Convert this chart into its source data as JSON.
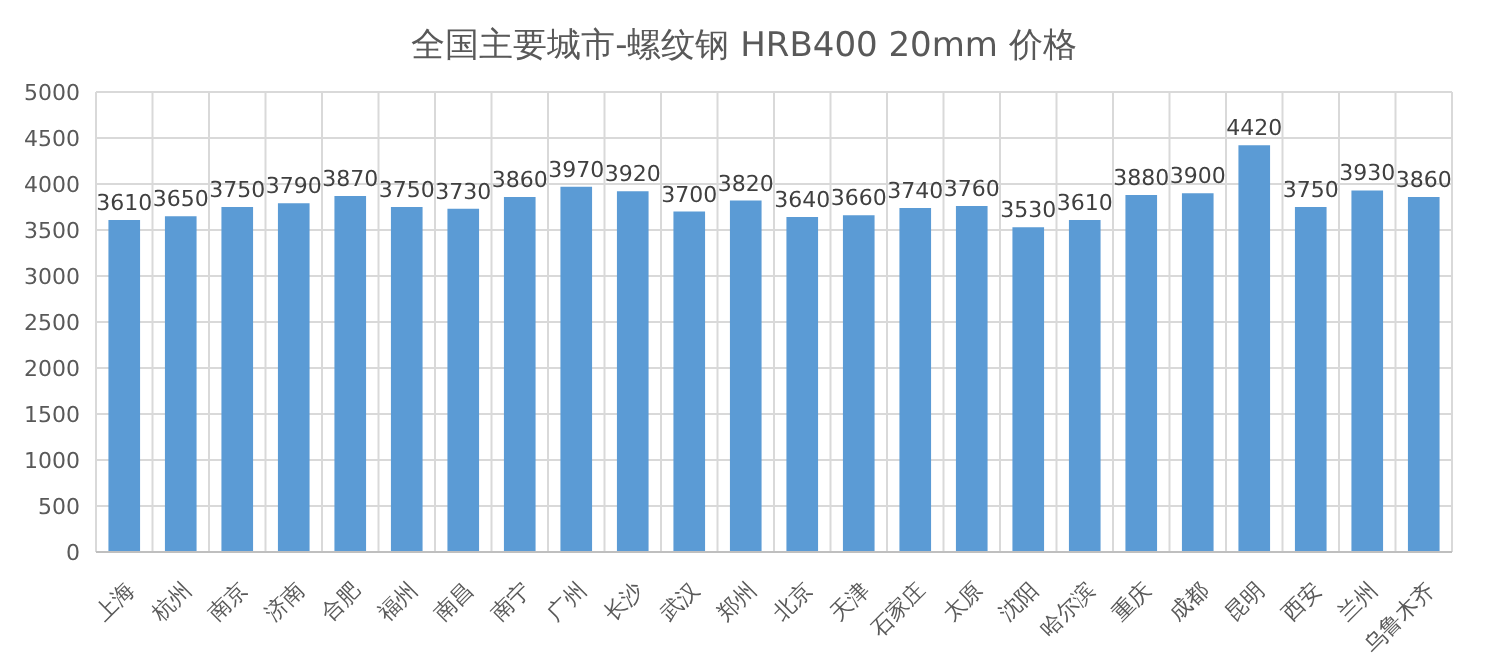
{
  "chart_data": {
    "type": "bar",
    "title": "全国主要城市-螺纹钢 HRB400 20mm   价格",
    "categories": [
      "上海",
      "杭州",
      "南京",
      "济南",
      "合肥",
      "福州",
      "南昌",
      "南宁",
      "广州",
      "长沙",
      "武汉",
      "郑州",
      "北京",
      "天津",
      "石家庄",
      "太原",
      "沈阳",
      "哈尔滨",
      "重庆",
      "成都",
      "昆明",
      "西安",
      "兰州",
      "乌鲁木齐"
    ],
    "values": [
      3610,
      3650,
      3750,
      3790,
      3870,
      3750,
      3730,
      3860,
      3970,
      3920,
      3700,
      3820,
      3640,
      3660,
      3740,
      3760,
      3530,
      3610,
      3880,
      3900,
      4420,
      3750,
      3930,
      3860
    ],
    "color": "#5b9bd5",
    "ylim": [
      0,
      5000
    ],
    "yticks": [
      0,
      500,
      1000,
      1500,
      2000,
      2500,
      3000,
      3500,
      4000,
      4500,
      5000
    ],
    "grid": true,
    "data_labels": true
  }
}
